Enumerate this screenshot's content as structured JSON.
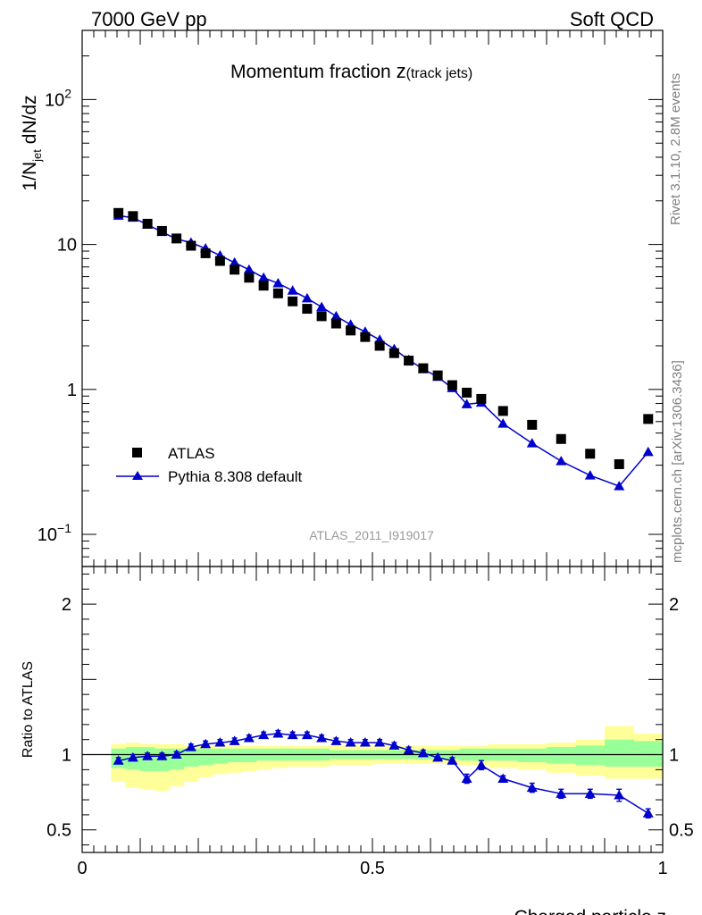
{
  "header": {
    "left": "7000 GeV pp",
    "right": "Soft QCD"
  },
  "side_text": {
    "rivet": "Rivet 3.1.10,  2.8M events",
    "mcplots": "mcplots.cern.ch [arXiv:1306.3436]"
  },
  "colors": {
    "mc": "#0000cc",
    "data": "#000000",
    "band_inner": "#99ff99",
    "band_outer": "#ffff99"
  },
  "chart_data": [
    {
      "type": "scatter",
      "title_main": "Momentum fraction ",
      "title_z": "z",
      "title_sub": "(track jets)",
      "ylabel_prefix": "1/N",
      "ylabel_sub": "jet",
      "ylabel_suffix": " dN/dz",
      "yscale": "log",
      "ylim": [
        0.06,
        300
      ],
      "xlim": [
        0,
        1
      ],
      "analysis_label": "ATLAS_2011_I919017",
      "y_ticks": [
        {
          "value": 0.1,
          "base": "10",
          "exp": "−1"
        },
        {
          "value": 1,
          "base": "1",
          "exp": ""
        },
        {
          "value": 10,
          "base": "10",
          "exp": ""
        },
        {
          "value": 100,
          "base": "10",
          "exp": "2"
        }
      ],
      "legend": {
        "position": "bottom-left",
        "data_label": "ATLAS",
        "mc_label": "Pythia 8.308 default"
      },
      "series": [
        {
          "name": "ATLAS",
          "marker": "square",
          "x": [
            0.0625,
            0.0875,
            0.1125,
            0.1375,
            0.1625,
            0.1875,
            0.2125,
            0.2375,
            0.2625,
            0.2875,
            0.3125,
            0.3375,
            0.3625,
            0.3875,
            0.4125,
            0.4375,
            0.4625,
            0.4875,
            0.5125,
            0.5375,
            0.5625,
            0.5875,
            0.6125,
            0.6375,
            0.6625,
            0.6875,
            0.725,
            0.775,
            0.825,
            0.875,
            0.925,
            0.975
          ],
          "y": [
            16.5,
            15.7,
            13.9,
            12.4,
            11.0,
            9.8,
            8.7,
            7.7,
            6.7,
            5.9,
            5.2,
            4.6,
            4.05,
            3.6,
            3.2,
            2.85,
            2.55,
            2.3,
            2.0,
            1.78,
            1.58,
            1.4,
            1.25,
            1.07,
            0.95,
            0.86,
            0.71,
            0.57,
            0.455,
            0.36,
            0.305,
            0.625
          ]
        },
        {
          "name": "Pythia 8.308 default",
          "marker": "triangle",
          "x": [
            0.0625,
            0.0875,
            0.1125,
            0.1375,
            0.1625,
            0.1875,
            0.2125,
            0.2375,
            0.2625,
            0.2875,
            0.3125,
            0.3375,
            0.3625,
            0.3875,
            0.4125,
            0.4375,
            0.4625,
            0.4875,
            0.5125,
            0.5375,
            0.5625,
            0.5875,
            0.6125,
            0.6375,
            0.6625,
            0.6875,
            0.725,
            0.775,
            0.825,
            0.875,
            0.925,
            0.975
          ],
          "y": [
            15.8,
            15.3,
            13.7,
            12.2,
            10.9,
            10.3,
            9.4,
            8.4,
            7.5,
            6.7,
            5.9,
            5.4,
            4.8,
            4.25,
            3.7,
            3.2,
            2.8,
            2.5,
            2.2,
            1.9,
            1.6,
            1.38,
            1.22,
            1.02,
            0.79,
            0.81,
            0.58,
            0.425,
            0.32,
            0.255,
            0.215,
            0.37
          ]
        }
      ]
    },
    {
      "type": "scatter",
      "ylabel": "Ratio to ATLAS",
      "xlabel": "Charged particle z",
      "ylim": [
        0.35,
        2.25
      ],
      "xlim": [
        0,
        1
      ],
      "x_ticks": [
        {
          "value": 0,
          "label": "0"
        },
        {
          "value": 0.5,
          "label": "0.5"
        },
        {
          "value": 1,
          "label": "1"
        }
      ],
      "y_ticks": [
        {
          "value": 0.5,
          "label": "0.5"
        },
        {
          "value": 1,
          "label": "1"
        },
        {
          "value": 2,
          "label": "2"
        }
      ],
      "bands": {
        "edges": [
          0.05,
          0.075,
          0.1,
          0.125,
          0.15,
          0.175,
          0.2,
          0.225,
          0.25,
          0.275,
          0.3,
          0.325,
          0.35,
          0.375,
          0.4,
          0.425,
          0.45,
          0.475,
          0.5,
          0.525,
          0.55,
          0.575,
          0.6,
          0.625,
          0.65,
          0.675,
          0.7,
          0.75,
          0.8,
          0.85,
          0.9,
          0.95,
          1.0
        ],
        "outer_lo": [
          0.82,
          0.78,
          0.77,
          0.76,
          0.79,
          0.82,
          0.85,
          0.87,
          0.88,
          0.89,
          0.9,
          0.91,
          0.92,
          0.92,
          0.92,
          0.93,
          0.93,
          0.93,
          0.94,
          0.94,
          0.94,
          0.94,
          0.94,
          0.94,
          0.93,
          0.93,
          0.91,
          0.9,
          0.88,
          0.86,
          0.84,
          0.84
        ],
        "outer_hi": [
          1.07,
          1.08,
          1.07,
          1.07,
          1.07,
          1.06,
          1.06,
          1.06,
          1.06,
          1.06,
          1.06,
          1.06,
          1.06,
          1.06,
          1.06,
          1.06,
          1.06,
          1.06,
          1.06,
          1.06,
          1.06,
          1.06,
          1.06,
          1.06,
          1.06,
          1.06,
          1.07,
          1.07,
          1.08,
          1.1,
          1.19,
          1.14
        ],
        "inner_lo": [
          0.91,
          0.9,
          0.89,
          0.89,
          0.9,
          0.92,
          0.93,
          0.94,
          0.95,
          0.95,
          0.96,
          0.96,
          0.96,
          0.96,
          0.96,
          0.97,
          0.97,
          0.97,
          0.97,
          0.97,
          0.97,
          0.97,
          0.97,
          0.97,
          0.96,
          0.96,
          0.96,
          0.95,
          0.94,
          0.93,
          0.92,
          0.92
        ],
        "inner_hi": [
          1.04,
          1.05,
          1.05,
          1.04,
          1.04,
          1.04,
          1.04,
          1.04,
          1.04,
          1.04,
          1.04,
          1.04,
          1.04,
          1.04,
          1.04,
          1.03,
          1.03,
          1.03,
          1.03,
          1.03,
          1.03,
          1.03,
          1.03,
          1.03,
          1.04,
          1.04,
          1.04,
          1.04,
          1.05,
          1.06,
          1.1,
          1.09
        ]
      },
      "ratio": {
        "x": [
          0.0625,
          0.0875,
          0.1125,
          0.1375,
          0.1625,
          0.1875,
          0.2125,
          0.2375,
          0.2625,
          0.2875,
          0.3125,
          0.3375,
          0.3625,
          0.3875,
          0.4125,
          0.4375,
          0.4625,
          0.4875,
          0.5125,
          0.5375,
          0.5625,
          0.5875,
          0.6125,
          0.6375,
          0.6625,
          0.6875,
          0.725,
          0.775,
          0.825,
          0.875,
          0.925,
          0.975
        ],
        "y": [
          0.96,
          0.98,
          0.99,
          0.99,
          1.0,
          1.05,
          1.07,
          1.08,
          1.09,
          1.11,
          1.13,
          1.14,
          1.13,
          1.13,
          1.11,
          1.09,
          1.08,
          1.08,
          1.08,
          1.06,
          1.03,
          1.01,
          0.98,
          0.96,
          0.84,
          0.93,
          0.84,
          0.78,
          0.74,
          0.74,
          0.73,
          0.61
        ],
        "err": [
          0.02,
          0.02,
          0.02,
          0.02,
          0.02,
          0.02,
          0.02,
          0.02,
          0.02,
          0.02,
          0.02,
          0.02,
          0.02,
          0.02,
          0.02,
          0.02,
          0.02,
          0.02,
          0.02,
          0.02,
          0.02,
          0.02,
          0.02,
          0.02,
          0.03,
          0.03,
          0.02,
          0.03,
          0.03,
          0.03,
          0.04,
          0.03
        ]
      }
    }
  ]
}
